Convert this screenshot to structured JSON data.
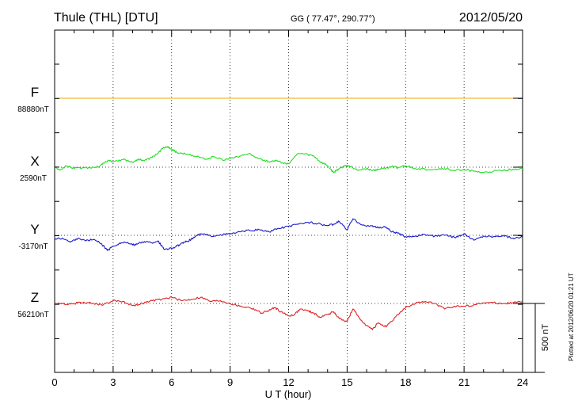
{
  "chart_data": {
    "type": "line",
    "title_left": "Thule (THL)  [DTU]",
    "title_center": "GG ( 77.47°, 290.77°)",
    "title_right": "2012/05/20",
    "xlabel": "U T (hour)",
    "xlim": [
      0,
      24
    ],
    "xticks": [
      "0",
      "3",
      "6",
      "9",
      "12",
      "15",
      "18",
      "21",
      "24"
    ],
    "grid": true,
    "scale_label": "500 nT",
    "plotted_note": "Plotted at 2012/06/20 01:21  UT",
    "components": [
      {
        "letter": "F",
        "baseline": "88880nT",
        "color": "#f0a800"
      },
      {
        "letter": "X",
        "baseline": "2590nT",
        "color": "#22dd22"
      },
      {
        "letter": "Y",
        "baseline": "-3170nT",
        "color": "#1a1acc"
      },
      {
        "letter": "Z",
        "baseline": "56210nT",
        "color": "#dd2222"
      }
    ],
    "series": [
      {
        "component": "F",
        "unit": "nT offset from baseline",
        "x": [
          0,
          24
        ],
        "values": [
          0,
          0
        ]
      },
      {
        "component": "X",
        "unit": "nT offset from baseline",
        "x": [
          0,
          0.3,
          0.6,
          1,
          1.5,
          2,
          2.3,
          2.5,
          2.8,
          3,
          3.5,
          4,
          4.3,
          4.6,
          5,
          5.3,
          5.6,
          5.8,
          6,
          6.3,
          6.7,
          7.2,
          7.8,
          8.2,
          8.7,
          9.1,
          9.5,
          10,
          10.5,
          11,
          11.3,
          11.6,
          12,
          12.5,
          13,
          13.3,
          13.6,
          14,
          14.3,
          14.6,
          15,
          15.3,
          15.6,
          16,
          16.3,
          16.6,
          17,
          17.3,
          17.6,
          18,
          18.5,
          19,
          19.5,
          20,
          20.5,
          21,
          21.5,
          22,
          22.5,
          23,
          23.5,
          24
        ],
        "values": [
          0,
          -20,
          10,
          -10,
          -5,
          0,
          5,
          30,
          50,
          40,
          55,
          35,
          60,
          45,
          70,
          100,
          145,
          150,
          130,
          105,
          95,
          80,
          60,
          75,
          50,
          70,
          80,
          100,
          60,
          40,
          50,
          35,
          25,
          100,
          90,
          80,
          40,
          10,
          -40,
          -10,
          15,
          -5,
          -20,
          -10,
          -25,
          -15,
          -5,
          5,
          -5,
          10,
          -10,
          -15,
          -15,
          -10,
          -25,
          -15,
          -30,
          -40,
          -30,
          -25,
          -15,
          -10
        ]
      },
      {
        "component": "Y",
        "unit": "nT offset from baseline",
        "x": [
          0,
          0.4,
          0.8,
          1.2,
          1.6,
          2,
          2.4,
          2.7,
          3,
          3.3,
          3.6,
          4,
          4.3,
          4.6,
          5,
          5.3,
          5.6,
          5.9,
          6.1,
          6.4,
          6.7,
          7,
          7.3,
          7.6,
          8,
          8.5,
          9,
          9.5,
          10,
          10.5,
          11,
          11.5,
          12,
          12.5,
          13,
          13.5,
          14,
          14.3,
          14.6,
          15,
          15.3,
          15.6,
          16,
          16.3,
          16.6,
          17,
          17.3,
          17.6,
          18,
          18.5,
          19,
          19.5,
          20,
          20.5,
          21,
          21.5,
          22,
          22.5,
          23,
          23.5,
          24
        ],
        "values": [
          -30,
          -20,
          -50,
          -20,
          -40,
          -30,
          -60,
          -110,
          -80,
          -60,
          -50,
          -70,
          -60,
          -45,
          -55,
          -40,
          -100,
          -95,
          -90,
          -70,
          -50,
          -30,
          0,
          10,
          -5,
          5,
          10,
          25,
          35,
          40,
          25,
          50,
          65,
          80,
          95,
          85,
          70,
          80,
          100,
          40,
          120,
          90,
          65,
          70,
          55,
          60,
          25,
          15,
          -10,
          -5,
          5,
          -5,
          0,
          -15,
          10,
          -35,
          -5,
          -10,
          0,
          -20,
          -15
        ]
      },
      {
        "component": "Z",
        "unit": "nT offset from baseline",
        "x": [
          0,
          0.5,
          1,
          1.5,
          2,
          2.5,
          3,
          3.5,
          4,
          4.5,
          5,
          5.5,
          6,
          6.5,
          7,
          7.5,
          8,
          8.5,
          9,
          9.5,
          10,
          10.3,
          10.6,
          11,
          11.3,
          11.6,
          12,
          12.3,
          12.6,
          13,
          13.3,
          13.6,
          14,
          14.3,
          14.6,
          15,
          15.3,
          15.6,
          16,
          16.3,
          16.6,
          17,
          17.3,
          17.6,
          18,
          18.5,
          19,
          19.5,
          20,
          20.5,
          21,
          21.5,
          22,
          22.5,
          23,
          23.5,
          24
        ],
        "values": [
          0,
          -5,
          0,
          10,
          0,
          -10,
          20,
          15,
          -15,
          0,
          20,
          30,
          45,
          20,
          30,
          45,
          15,
          20,
          0,
          -20,
          -30,
          -45,
          -70,
          -50,
          -30,
          -60,
          -90,
          -80,
          -40,
          -55,
          -70,
          -100,
          -80,
          -60,
          -110,
          -130,
          -40,
          -100,
          -160,
          -190,
          -140,
          -170,
          -130,
          -80,
          -30,
          0,
          15,
          0,
          -40,
          -20,
          -20,
          -10,
          5,
          5,
          0,
          5,
          15
        ]
      }
    ]
  }
}
